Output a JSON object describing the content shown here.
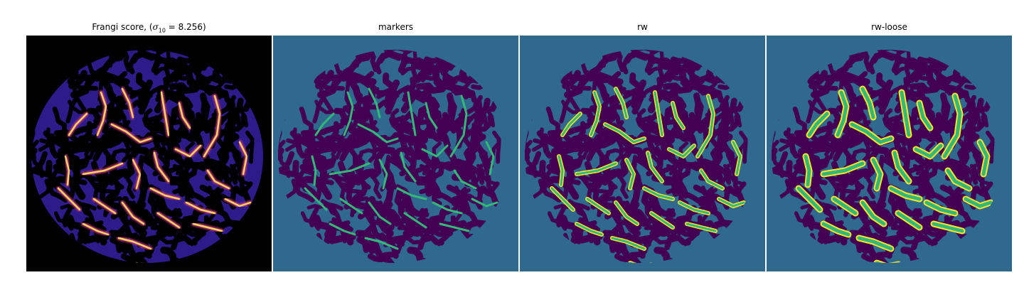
{
  "figure": {
    "panels": [
      {
        "id": "frangi",
        "title_prefix": "Frangi score, (",
        "title_symbol": "σ",
        "title_sub": "10",
        "title_suffix": " = 8.256)"
      },
      {
        "id": "markers",
        "title": "markers"
      },
      {
        "id": "rw",
        "title": "rw"
      },
      {
        "id": "rw-loose",
        "title": "rw-loose"
      }
    ]
  },
  "colors": {
    "teal_bg": "#2f6a8e",
    "purple_pores": "#440154",
    "green_marker": "#35b779",
    "yellow_edge": "#fde725",
    "frangi_bg": "#000000",
    "frangi_low": "#2d1b8a",
    "frangi_mid": "#b5367a",
    "frangi_high": "#fcd25f"
  }
}
